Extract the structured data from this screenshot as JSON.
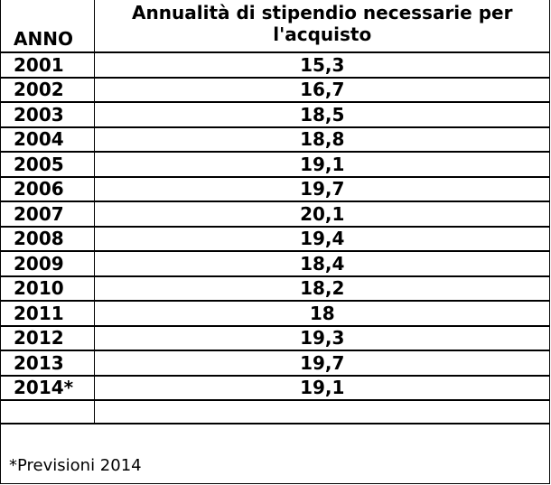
{
  "table": {
    "header": {
      "year": "ANNO",
      "value": "Annualità di stipendio necessarie per l'acquisto"
    },
    "rows": [
      {
        "year": "2001",
        "value": "15,3"
      },
      {
        "year": "2002",
        "value": "16,7"
      },
      {
        "year": "2003",
        "value": "18,5"
      },
      {
        "year": "2004",
        "value": "18,8"
      },
      {
        "year": "2005",
        "value": "19,1"
      },
      {
        "year": "2006",
        "value": "19,7"
      },
      {
        "year": "2007",
        "value": "20,1"
      },
      {
        "year": "2008",
        "value": "19,4"
      },
      {
        "year": "2009",
        "value": "18,4"
      },
      {
        "year": "2010",
        "value": "18,2"
      },
      {
        "year": "2011",
        "value": "18"
      },
      {
        "year": "2012",
        "value": "19,3"
      },
      {
        "year": "2013",
        "value": "19,7"
      },
      {
        "year": "2014*",
        "value": "19,1"
      }
    ]
  },
  "footnote": "*Previsioni 2014"
}
